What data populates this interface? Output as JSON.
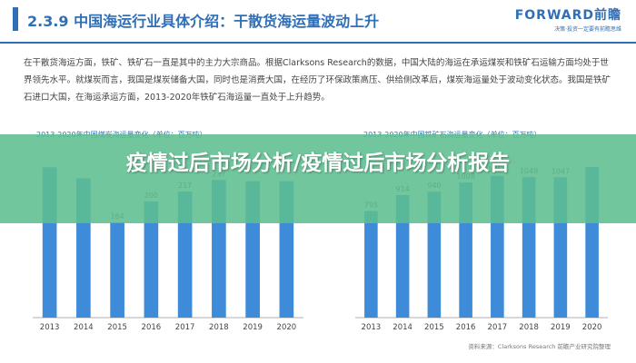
{
  "header": {
    "title": "2.3.9  中国海运行业具体介绍：干散货海运量波动上升",
    "logo": "FORWARD前瞻",
    "logo_sub": "决策·投资一定要有前瞻思维"
  },
  "body_text": "在干散货海运方面，铁矿、铁矿石一直是其中的主力大宗商品。根据Clarksons Research的数据，中国大陆的海运在承运煤炭和铁矿石运输方面均处于世界领先水平。就煤炭而言，我国是煤炭储备大国，同时也是消费大国，在经历了环保政策高压、供给侧改革后，煤炭海运量处于波动变化状态。我国是铁矿石进口大国，在海运承运方面，2013-2020年铁矿石海运量一直处于上升趋势。",
  "source": "资料来源：Clarksons Research 前瞻产业研究院整理",
  "banner": {
    "text": "疫情过后市场分析/疫情过后市场分析报告"
  },
  "colors": {
    "bar": "#3d8bd9",
    "accent": "#2f6fb6",
    "banner": "#5dbe8f"
  },
  "chart_data": [
    {
      "type": "bar",
      "title": "2013-2020年中国煤炭海运量变化（单位：百万吨）",
      "categories": [
        "2013",
        "2014",
        "2015",
        "2016",
        "2017",
        "2018",
        "2019",
        "2020"
      ],
      "values": [
        259,
        240,
        164,
        200,
        217,
        237,
        235,
        235
      ],
      "data_labels": [
        "",
        "",
        "164",
        "200",
        "217",
        "237",
        "",
        ""
      ],
      "ylim": [
        0,
        300
      ]
    },
    {
      "type": "bar",
      "title": "2013-2020年中国铁矿石海运量变化（单位：百万吨）",
      "categories": [
        "2013",
        "2014",
        "2015",
        "2016",
        "2017",
        "2018",
        "2019",
        "2020"
      ],
      "values": [
        795,
        914,
        940,
        1008,
        1058,
        1048,
        1047,
        1123
      ],
      "data_labels": [
        "795",
        "914",
        "940",
        "1008",
        "1058",
        "1048",
        "1047",
        ""
      ],
      "ylim": [
        0,
        1300
      ]
    }
  ]
}
